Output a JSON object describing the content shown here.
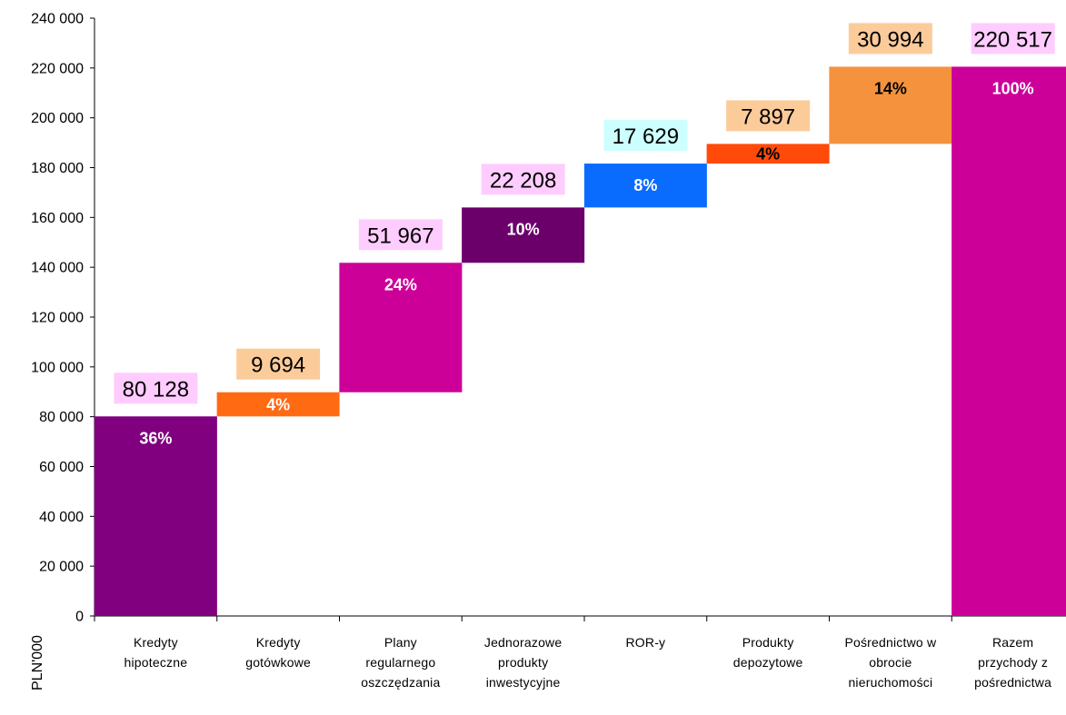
{
  "chart_data": {
    "type": "bar",
    "subtype": "waterfall",
    "ylabel": "PLN'000",
    "ylim": [
      0,
      240000
    ],
    "ytick_step": 20000,
    "ytick_labels": [
      "0",
      "20 000",
      "40 000",
      "60 000",
      "80 000",
      "100 000",
      "120 000",
      "140 000",
      "160 000",
      "180 000",
      "200 000",
      "220 000",
      "240 000"
    ],
    "grid": false,
    "categories": [
      [
        "Kredyty",
        "hipoteczne"
      ],
      [
        "Kredyty",
        "gotówkowe"
      ],
      [
        "Plany",
        "regularnego",
        "oszczędzania"
      ],
      [
        "Jednorazowe",
        "produkty",
        "inwestycyjne"
      ],
      [
        "ROR-y"
      ],
      [
        "Produkty",
        "depozytowe"
      ],
      [
        "Pośrednictwo w",
        "obrocie",
        "nieruchomości"
      ],
      [
        "Razem",
        "przychody z",
        "pośrednictwa"
      ]
    ],
    "values": [
      80128,
      9694,
      51967,
      22208,
      17629,
      7897,
      30994,
      220517
    ],
    "value_labels": [
      "80 128",
      "9 694",
      "51 967",
      "22 208",
      "17 629",
      "7 897",
      "30 994",
      "220 517"
    ],
    "percent_labels": [
      "36%",
      "4%",
      "24%",
      "10%",
      "8%",
      "4%",
      "14%",
      "100%"
    ],
    "is_total": [
      false,
      false,
      false,
      false,
      false,
      false,
      false,
      true
    ],
    "bar_colors": [
      "#800080",
      "#ff6a13",
      "#cc0099",
      "#6b006b",
      "#0a6cff",
      "#ff4a0a",
      "#f5923e",
      "#cc0099"
    ],
    "percent_text_colors": [
      "#ffffff",
      "#ffffff",
      "#ffffff",
      "#ffffff",
      "#ffffff",
      "#000000",
      "#000000",
      "#ffffff"
    ],
    "value_label_bg_colors": [
      "#ffccff",
      "#fbcb9a",
      "#ffccff",
      "#ffccff",
      "#ccffff",
      "#fbcb9a",
      "#fbcb9a",
      "#ffccff"
    ]
  }
}
